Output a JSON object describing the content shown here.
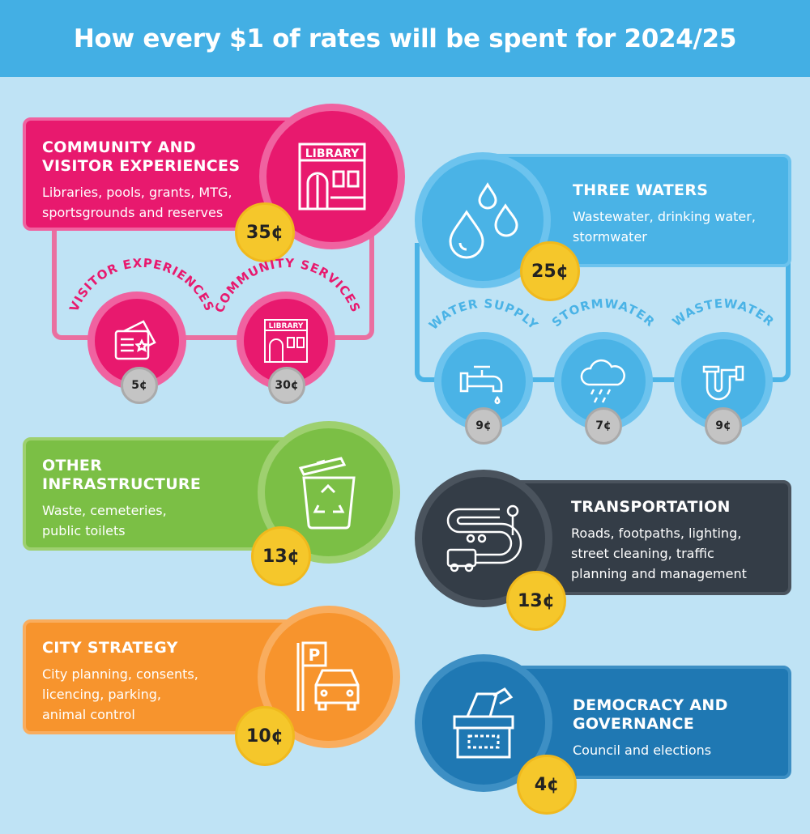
{
  "header": {
    "title": "How every $1 of rates will be spent for 2024/25"
  },
  "community": {
    "title_line1": "COMMUNITY AND",
    "title_line2": "VISITOR EXPERIENCES",
    "desc_line1": "Libraries, pools, grants, MTG,",
    "desc_line2": "sportsgrounds and reserves",
    "amount": "35¢",
    "icon_label": "LIBRARY",
    "sub": [
      {
        "label": "VISITOR EXPERIENCES",
        "amount": "5¢"
      },
      {
        "label": "COMMUNITY SERVICES",
        "amount": "30¢",
        "icon_label": "LIBRARY"
      }
    ]
  },
  "waters": {
    "title": "THREE WATERS",
    "desc_line1": "Wastewater, drinking water,",
    "desc_line2": "stormwater",
    "amount": "25¢",
    "sub": [
      {
        "label": "WATER SUPPLY",
        "amount": "9¢"
      },
      {
        "label": "STORMWATER",
        "amount": "7¢"
      },
      {
        "label": "WASTEWATER",
        "amount": "9¢"
      }
    ]
  },
  "infrastructure": {
    "title_line1": "OTHER",
    "title_line2": "INFRASTRUCTURE",
    "desc_line1": "Waste, cemeteries,",
    "desc_line2": "public toilets",
    "amount": "13¢"
  },
  "transportation": {
    "title": "TRANSPORTATION",
    "desc_line1": "Roads, footpaths, lighting,",
    "desc_line2": "street cleaning, traffic",
    "desc_line3": "planning and management",
    "amount": "13¢"
  },
  "strategy": {
    "title": "CITY STRATEGY",
    "desc_line1": "City planning, consents,",
    "desc_line2": "licencing, parking,",
    "desc_line3": "animal control",
    "amount": "10¢",
    "icon_label": "P"
  },
  "democracy": {
    "title_line1": "DEMOCRACY AND",
    "title_line2": "GOVERNANCE",
    "desc_line1": "Council and elections",
    "amount": "4¢"
  },
  "colors": {
    "pink": "#e8196e",
    "blue": "#4ab3e6",
    "green": "#7bbf45",
    "dark": "#343d47",
    "orange": "#f7942d",
    "navy": "#1f78b3",
    "gold": "#f5c72b"
  }
}
